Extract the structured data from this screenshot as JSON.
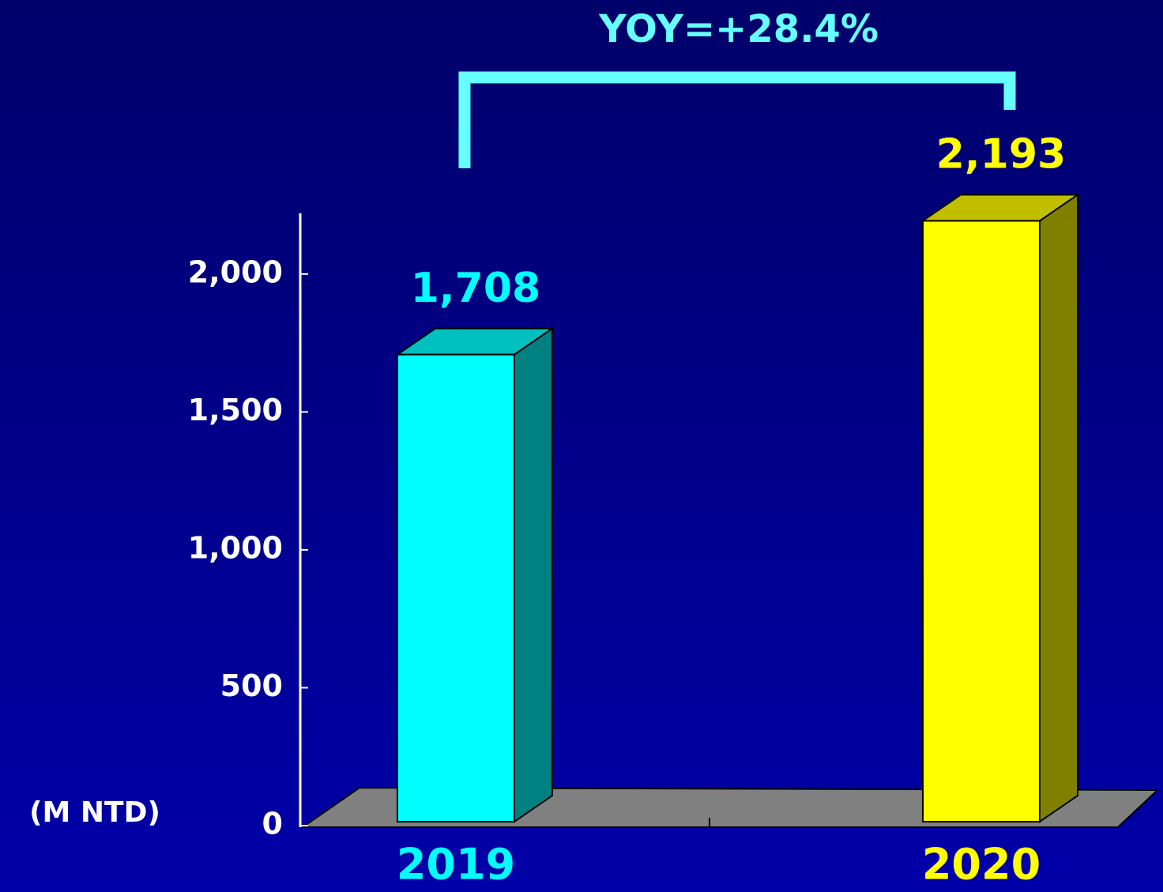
{
  "chart_data": {
    "type": "bar3d",
    "title": "YOY=+28.4%",
    "ylabel": "(M NTD)",
    "categories": [
      "2019",
      "2020"
    ],
    "values": [
      1708,
      2193
    ],
    "value_labels": [
      "1,708",
      "2,193"
    ],
    "colors": [
      "#00ffff",
      "#ffff00"
    ],
    "ylim": [
      0,
      2200
    ],
    "yticks": [
      0,
      500,
      {
        "value": 1000,
        "label": "1,000"
      },
      {
        "value": 1500,
        "label": "1,500"
      },
      {
        "value": 2000,
        "label": "2,000"
      }
    ],
    "grid": false
  }
}
